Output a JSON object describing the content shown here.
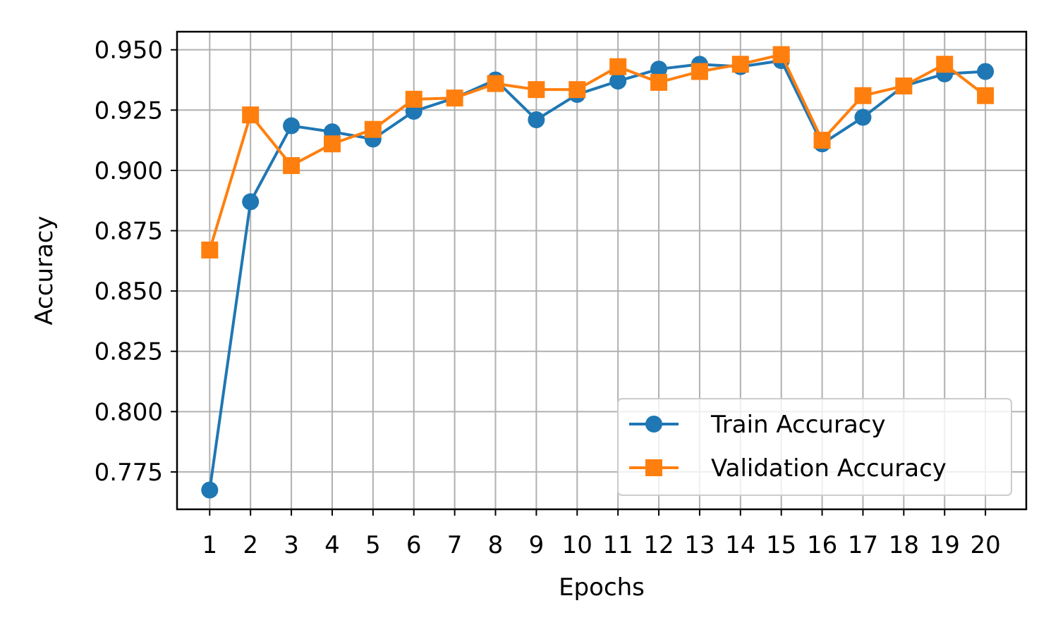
{
  "chart_data": {
    "type": "line",
    "title": "",
    "xlabel": "Epochs",
    "ylabel": "Accuracy",
    "x": [
      1,
      2,
      3,
      4,
      5,
      6,
      7,
      8,
      9,
      10,
      11,
      12,
      13,
      14,
      15,
      16,
      17,
      18,
      19,
      20
    ],
    "xticks": [
      "1",
      "2",
      "3",
      "4",
      "5",
      "6",
      "7",
      "8",
      "9",
      "10",
      "11",
      "12",
      "13",
      "14",
      "15",
      "16",
      "17",
      "18",
      "19",
      "20"
    ],
    "yticks": [
      "0.775",
      "0.800",
      "0.825",
      "0.850",
      "0.875",
      "0.900",
      "0.925",
      "0.950"
    ],
    "ytick_values": [
      0.775,
      0.8,
      0.825,
      0.85,
      0.875,
      0.9,
      0.925,
      0.95
    ],
    "xlim": [
      0.2,
      21.0
    ],
    "ylim": [
      0.7595,
      0.9575
    ],
    "grid": true,
    "legend_position": "lower-right",
    "series": [
      {
        "name": "Train Accuracy",
        "color": "#1f77b4",
        "marker": "circle",
        "values": [
          0.7675,
          0.887,
          0.9185,
          0.916,
          0.913,
          0.9245,
          0.93,
          0.9375,
          0.921,
          0.9315,
          0.937,
          0.942,
          0.944,
          0.943,
          0.9455,
          0.911,
          0.922,
          0.935,
          0.94,
          0.941
        ]
      },
      {
        "name": "Validation Accuracy",
        "color": "#ff7f0e",
        "marker": "square",
        "values": [
          0.867,
          0.923,
          0.902,
          0.911,
          0.917,
          0.9295,
          0.93,
          0.936,
          0.9335,
          0.9335,
          0.943,
          0.9365,
          0.941,
          0.944,
          0.948,
          0.9125,
          0.931,
          0.935,
          0.944,
          0.931
        ]
      }
    ]
  }
}
